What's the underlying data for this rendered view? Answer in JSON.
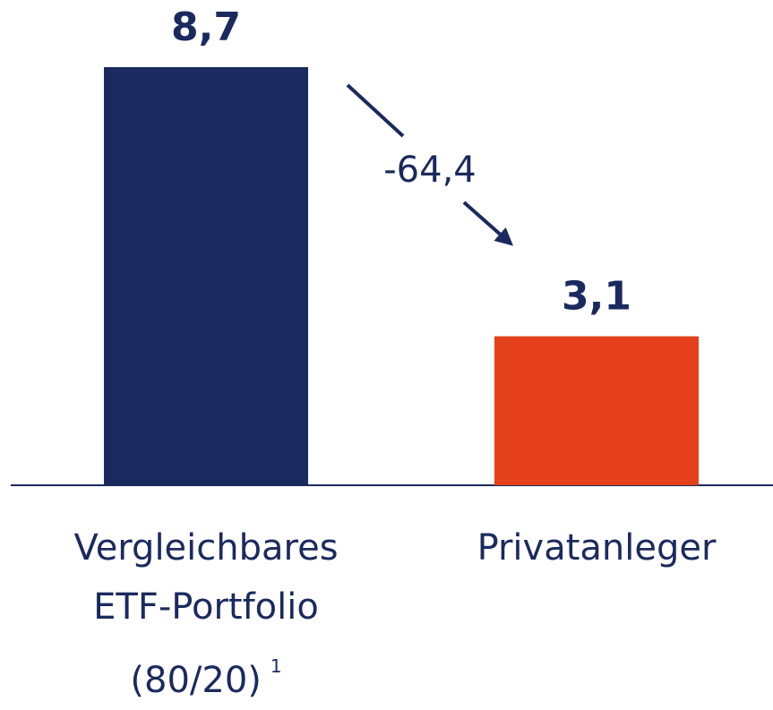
{
  "chart_data": {
    "type": "bar",
    "categories": [
      "Vergleichbares ETF-Portfolio (80/20)",
      "Privatanleger"
    ],
    "footnotes": [
      "1",
      null
    ],
    "values": [
      8.7,
      3.1
    ],
    "value_labels": [
      "8,7",
      "3,1"
    ],
    "colors": [
      "#1b2a5e",
      "#e5401c"
    ],
    "annotation": "-64,4"
  }
}
